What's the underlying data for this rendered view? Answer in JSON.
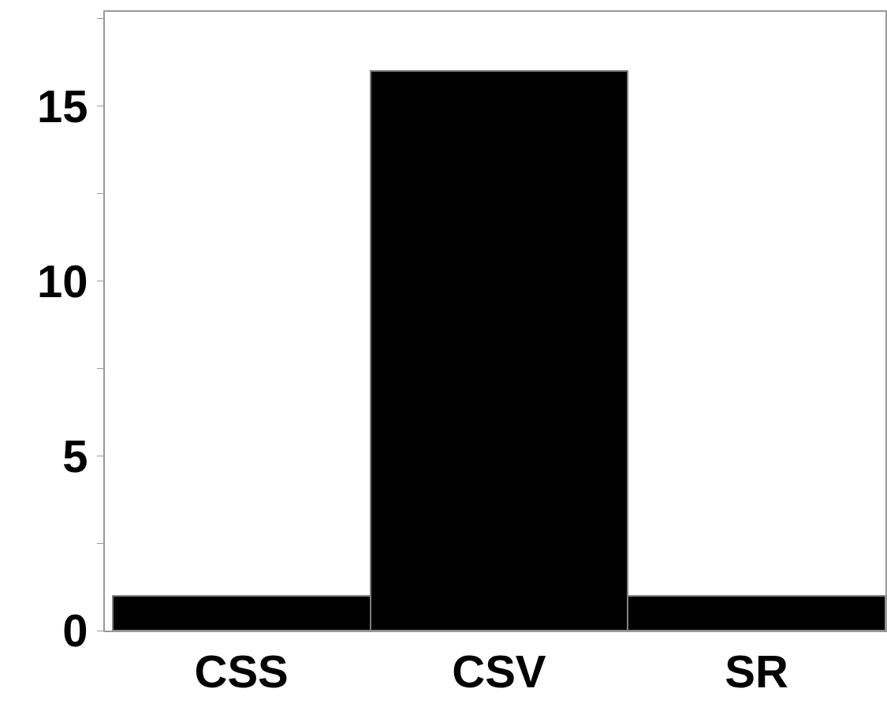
{
  "chart_data": {
    "type": "bar",
    "categories": [
      "CSS",
      "CSV",
      "SR"
    ],
    "values": [
      1,
      16,
      1
    ],
    "color": "#000000",
    "ylim": [
      0,
      17.7
    ],
    "yticks": [
      0,
      {
        "value": 2.5,
        "label": null
      },
      5,
      {
        "value": 7.5,
        "label": null
      },
      10,
      {
        "value": 12.5,
        "label": null
      },
      15,
      {
        "value": 17.5,
        "label": null
      }
    ]
  }
}
